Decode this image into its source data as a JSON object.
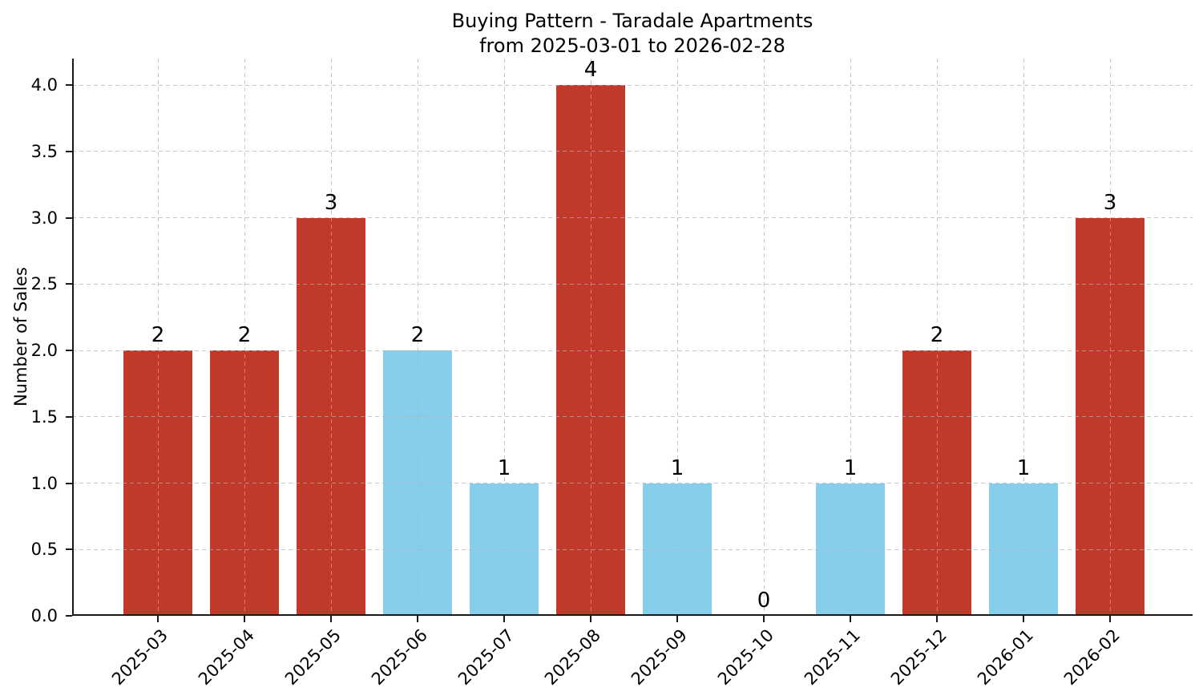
{
  "chart_data": {
    "type": "bar",
    "title": "Buying Pattern - Taradale Apartments\nfrom 2025-03-01 to 2026-02-28",
    "title_line1": "Buying Pattern - Taradale Apartments",
    "title_line2": "from 2025-03-01 to 2026-02-28",
    "xlabel": "",
    "ylabel": "Number of Sales",
    "categories": [
      "2025-03",
      "2025-04",
      "2025-05",
      "2025-06",
      "2025-07",
      "2025-08",
      "2025-09",
      "2025-10",
      "2025-11",
      "2025-12",
      "2026-01",
      "2026-02"
    ],
    "values": [
      2,
      2,
      3,
      2,
      1,
      4,
      1,
      0,
      1,
      2,
      1,
      3
    ],
    "value_labels": [
      "2",
      "2",
      "3",
      "2",
      "1",
      "4",
      "1",
      "0",
      "1",
      "2",
      "1",
      "3"
    ],
    "bar_colors": [
      "#c0392b",
      "#c0392b",
      "#c0392b",
      "#87ceeb",
      "#87ceeb",
      "#c0392b",
      "#87ceeb",
      "#87ceeb",
      "#87ceeb",
      "#c0392b",
      "#87ceeb",
      "#c0392b"
    ],
    "yticks": [
      0.0,
      0.5,
      1.0,
      1.5,
      2.0,
      2.5,
      3.0,
      3.5,
      4.0
    ],
    "ytick_labels": [
      "0.0",
      "0.5",
      "1.0",
      "1.5",
      "2.0",
      "2.5",
      "3.0",
      "3.5",
      "4.0"
    ],
    "ylim": [
      0,
      4.2
    ],
    "grid": true,
    "grid_style": "dashed",
    "legend_position": "none",
    "x_tick_label_rotation_deg": 45,
    "colors": {
      "bar_red": "#c0392b",
      "bar_skyblue": "#87ceeb",
      "grid": "#b0b0b0",
      "axis": "#1a1a1a",
      "text": "#000000",
      "background": "#ffffff"
    }
  }
}
